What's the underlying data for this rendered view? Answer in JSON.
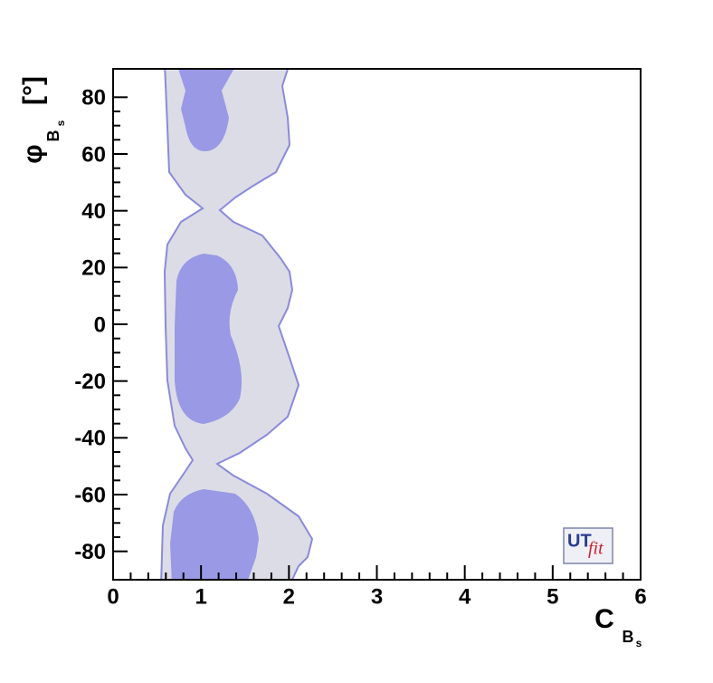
{
  "chart_data": {
    "type": "contour",
    "x_label": {
      "symbol": "C",
      "subscript": "B",
      "sub_subscript": "s"
    },
    "y_label": {
      "symbol": "φ",
      "subscript": "B",
      "sub_subscript": "s",
      "unit": "[°]"
    },
    "xlim": [
      0,
      6
    ],
    "xticks": [
      0,
      1,
      2,
      3,
      4,
      5,
      6
    ],
    "ylim": [
      -90,
      90
    ],
    "yticks": [
      -80,
      -60,
      -40,
      -20,
      0,
      20,
      40,
      60,
      80
    ],
    "logo": {
      "main": "UT",
      "script": "fit"
    }
  }
}
